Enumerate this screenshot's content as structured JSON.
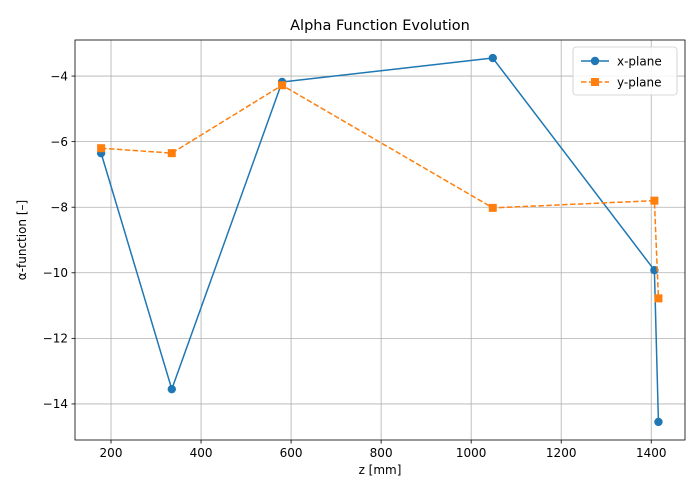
{
  "chart_data": {
    "type": "line",
    "title": "Alpha Function Evolution",
    "xlabel": "z [mm]",
    "ylabel": "α-function [–]",
    "xlim": [
      120,
      1475
    ],
    "ylim": [
      -15.1,
      -2.9
    ],
    "xticks": [
      200,
      400,
      600,
      800,
      1000,
      1200,
      1400
    ],
    "yticks": [
      -14,
      -12,
      -10,
      -8,
      -6,
      -4
    ],
    "grid": true,
    "legend_position": "top-right",
    "series": [
      {
        "name": "x-plane",
        "color": "#1f77b4",
        "marker": "circle",
        "linestyle": "solid",
        "x": [
          178,
          335,
          580,
          1048,
          1407,
          1416
        ],
        "y": [
          -6.35,
          -13.55,
          -4.18,
          -3.45,
          -9.92,
          -14.55
        ]
      },
      {
        "name": "y-plane",
        "color": "#ff7f0e",
        "marker": "square",
        "linestyle": "dashed",
        "x": [
          178,
          335,
          580,
          1048,
          1407,
          1416
        ],
        "y": [
          -6.2,
          -6.35,
          -4.28,
          -8.02,
          -7.8,
          -10.78
        ]
      }
    ]
  }
}
